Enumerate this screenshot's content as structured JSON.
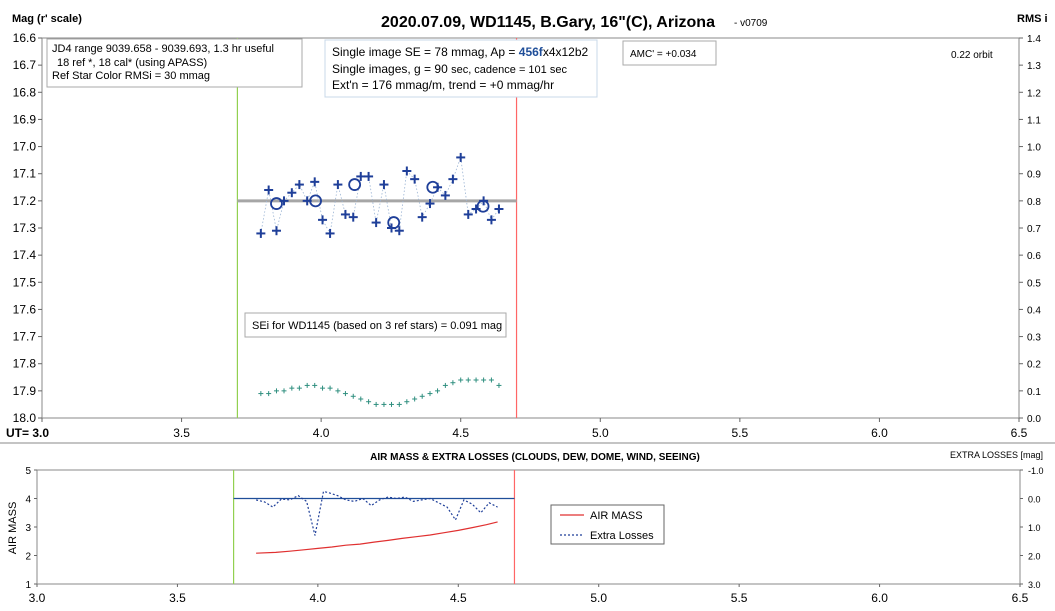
{
  "chart_data": [
    {
      "type": "scatter",
      "title": "2020.07.09, WD1145, B.Gary, 16\"(C), Arizona",
      "version_tag": "- v0709",
      "ylabel_left": "Mag (r' scale)",
      "ylabel_right": "RMS i",
      "xlabel": "UT= 3.0",
      "xlim": [
        3.0,
        6.5
      ],
      "x_ticks": [
        "3.0",
        "3.5",
        "4.0",
        "4.5",
        "5.0",
        "5.5",
        "6.0",
        "6.5"
      ],
      "ylim": [
        18.0,
        16.6
      ],
      "y_ticks": [
        "16.6",
        "16.7",
        "16.8",
        "16.9",
        "17.0",
        "17.1",
        "17.2",
        "17.3",
        "17.4",
        "17.5",
        "17.6",
        "17.7",
        "17.8",
        "17.9",
        "18.0"
      ],
      "y2lim": [
        0.0,
        1.4
      ],
      "y2_ticks": [
        "1.4",
        "1.3",
        "1.2",
        "1.1",
        "1.0",
        "0.9",
        "0.8",
        "0.7",
        "0.6",
        "0.5",
        "0.4",
        "0.3",
        "0.2",
        "0.1",
        "0.0"
      ],
      "vertical_markers": [
        {
          "x": 3.7,
          "color": "#92d050"
        },
        {
          "x": 4.7,
          "color": "#ff6666"
        }
      ],
      "model_line": {
        "x": [
          3.7,
          4.7
        ],
        "y": 17.2,
        "color": "#a6a6a6"
      },
      "series": [
        {
          "marker": "plus",
          "color": "#1f3f99",
          "x": [
            3.784,
            3.812,
            3.84,
            3.867,
            3.895,
            3.922,
            3.95,
            3.977,
            4.005,
            4.032,
            4.06,
            4.087,
            4.115,
            4.142,
            4.17,
            4.197,
            4.225,
            4.252,
            4.28,
            4.307,
            4.335,
            4.362,
            4.39,
            4.417,
            4.445,
            4.472,
            4.5,
            4.527,
            4.555,
            4.582,
            4.61,
            4.637
          ],
          "y": [
            17.32,
            17.16,
            17.31,
            17.2,
            17.17,
            17.14,
            17.2,
            17.13,
            17.27,
            17.32,
            17.14,
            17.25,
            17.26,
            17.11,
            17.11,
            17.28,
            17.14,
            17.3,
            17.31,
            17.09,
            17.12,
            17.26,
            17.21,
            17.15,
            17.18,
            17.12,
            17.04,
            17.25,
            17.23,
            17.2,
            17.27,
            17.23
          ]
        },
        {
          "marker": "circle",
          "color": "#1f3f99",
          "x": [
            3.84,
            3.98,
            4.12,
            4.26,
            4.4,
            4.58
          ],
          "y": [
            17.21,
            17.2,
            17.14,
            17.28,
            17.15,
            17.22
          ]
        },
        {
          "marker": "small-plus",
          "color": "#2f8f7f",
          "axis": "right",
          "x": [
            3.784,
            3.812,
            3.84,
            3.867,
            3.895,
            3.922,
            3.95,
            3.977,
            4.005,
            4.032,
            4.06,
            4.087,
            4.115,
            4.142,
            4.17,
            4.197,
            4.225,
            4.252,
            4.28,
            4.307,
            4.335,
            4.362,
            4.39,
            4.417,
            4.445,
            4.472,
            4.5,
            4.527,
            4.555,
            4.582,
            4.61,
            4.637
          ],
          "y": [
            0.09,
            0.09,
            0.1,
            0.1,
            0.11,
            0.11,
            0.12,
            0.12,
            0.11,
            0.11,
            0.1,
            0.09,
            0.08,
            0.07,
            0.06,
            0.05,
            0.05,
            0.05,
            0.05,
            0.06,
            0.07,
            0.08,
            0.09,
            0.1,
            0.12,
            0.13,
            0.14,
            0.14,
            0.14,
            0.14,
            0.14,
            0.12
          ]
        }
      ],
      "annotations": {
        "info_box": [
          "JD4 range 9039.658 - 9039.693, 1.3 hr useful",
          "18 ref *, 18 cal* (using APASS)",
          "Ref Star Color RMSi = 30 mmag"
        ],
        "se_box_line1_prefix": "Single image SE = 78 mmag, Ap = ",
        "se_box_line1_ap": "456f",
        "se_box_line1_suffix": "x4x12b2",
        "se_box_line2_main": "Single images, g = 90 ",
        "se_box_line2_small": "sec, cadence = 101 sec",
        "se_box_line3": "Ext'n = 176 mmag/m, trend = +0 mmag/hr",
        "amc_box": "AMC' = +0.034",
        "orbit_label": "0.22 orbit",
        "sei_box": "SEi for WD1145 (based on 3 ref stars) = 0.091 mag"
      }
    },
    {
      "type": "line",
      "title": "AIR MASS & EXTRA LOSSES (CLOUDS, DEW, DOME, WIND, SEEING)",
      "ylabel_left": "AIR MASS",
      "ylabel_right": "EXTRA LOSSES [mag]",
      "xlim": [
        3.0,
        6.5
      ],
      "x_ticks": [
        "3.0",
        "3.5",
        "4.0",
        "4.5",
        "5.0",
        "5.5",
        "6.0",
        "6.5"
      ],
      "ylim": [
        1,
        5
      ],
      "y_ticks": [
        "5",
        "4",
        "3",
        "2",
        "1"
      ],
      "y2lim": [
        -1.0,
        3.0
      ],
      "y2_ticks": [
        "-1.0",
        "0.0",
        "1.0",
        "2.0",
        "3.0"
      ],
      "vertical_markers": [
        {
          "x": 3.7,
          "color": "#92d050"
        },
        {
          "x": 4.7,
          "color": "#ff6666"
        }
      ],
      "reference_line": {
        "x": [
          3.7,
          4.7
        ],
        "y2": 0.0,
        "color": "#1f4e99"
      },
      "series": [
        {
          "name": "AIR MASS",
          "color": "#e03030",
          "axis": "left",
          "x": [
            3.78,
            3.85,
            3.9,
            3.95,
            4.0,
            4.05,
            4.1,
            4.15,
            4.2,
            4.25,
            4.3,
            4.35,
            4.4,
            4.45,
            4.5,
            4.55,
            4.6,
            4.64
          ],
          "y": [
            2.08,
            2.11,
            2.15,
            2.2,
            2.25,
            2.3,
            2.36,
            2.4,
            2.47,
            2.53,
            2.6,
            2.66,
            2.72,
            2.8,
            2.88,
            2.98,
            3.08,
            3.18
          ]
        },
        {
          "name": "Extra Losses",
          "color": "#1f3f99",
          "dashed": true,
          "axis": "right",
          "x": [
            3.78,
            3.81,
            3.84,
            3.87,
            3.9,
            3.93,
            3.96,
            3.99,
            4.02,
            4.04,
            4.07,
            4.1,
            4.13,
            4.16,
            4.19,
            4.22,
            4.25,
            4.28,
            4.31,
            4.34,
            4.37,
            4.4,
            4.43,
            4.46,
            4.49,
            4.52,
            4.55,
            4.58,
            4.61,
            4.64
          ],
          "y": [
            0.05,
            0.12,
            0.3,
            0.02,
            0.05,
            -0.1,
            0.1,
            1.3,
            -0.25,
            -0.2,
            -0.1,
            0.05,
            0.1,
            0.0,
            0.25,
            0.05,
            -0.05,
            0.0,
            -0.05,
            0.1,
            0.05,
            0.0,
            0.15,
            0.3,
            0.75,
            0.05,
            0.2,
            0.5,
            0.15,
            0.3
          ]
        }
      ]
    }
  ]
}
